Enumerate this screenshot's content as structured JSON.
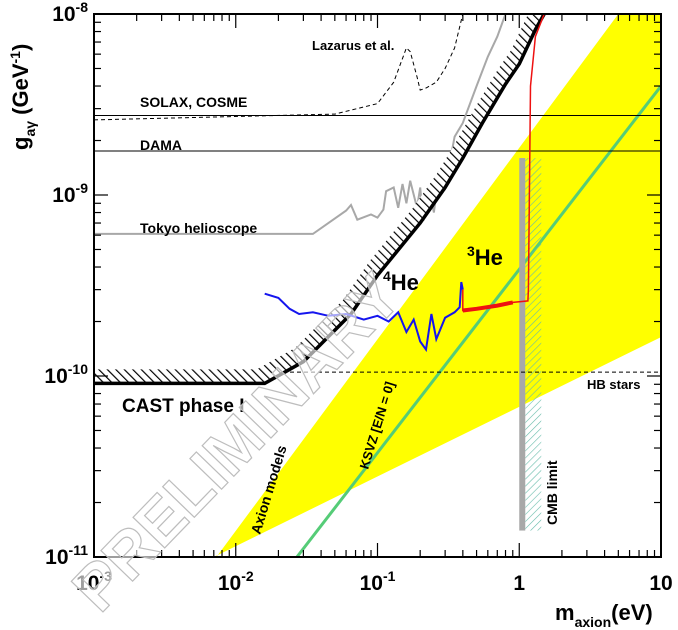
{
  "chart_data": {
    "type": "line",
    "xscale": "log",
    "yscale": "log",
    "xlim": [
      0.001,
      10
    ],
    "ylim": [
      1e-11,
      1e-08
    ],
    "xlabel": {
      "main": "m",
      "sub": "axion",
      "tail": "(eV)"
    },
    "ylabel": {
      "main": "g",
      "sub": "aγ",
      "tail": " (GeV",
      "sup": "-1",
      "close": ")"
    },
    "x_tick_labels": [
      {
        "value": 0.001,
        "base": "10",
        "exp": "-3"
      },
      {
        "value": 0.01,
        "base": "10",
        "exp": "-2"
      },
      {
        "value": 0.1,
        "base": "10",
        "exp": "-1"
      },
      {
        "value": 1,
        "base": "1",
        "exp": ""
      },
      {
        "value": 10,
        "base": "10",
        "exp": ""
      }
    ],
    "y_tick_labels": [
      {
        "value": 1e-08,
        "base": "10",
        "exp": "-8"
      },
      {
        "value": 1e-09,
        "base": "10",
        "exp": "-9"
      },
      {
        "value": 1e-10,
        "base": "10",
        "exp": "-10"
      },
      {
        "value": 1e-11,
        "base": "10",
        "exp": "-11"
      }
    ],
    "watermark": "PRELIMINARY",
    "colors": {
      "yellow_band": "#ffff00",
      "ksvz": "#55cc77",
      "he4": "#1515ee",
      "he3": "#ee1111",
      "gray": "#a8a8a8",
      "cmb_hatch": "#66bbaa"
    },
    "series": [
      {
        "name": "Axion models",
        "kind": "band",
        "lower": [
          [
            0.007,
            1e-11
          ],
          [
            10,
            1.64e-10
          ]
        ],
        "upper": [
          [
            0.0073,
            1e-11
          ],
          [
            5,
            1e-08
          ]
        ]
      },
      {
        "name": "KSVZ [E/N = 0]",
        "kind": "line",
        "points": [
          [
            0.027,
            1e-11
          ],
          [
            10,
            4e-09
          ]
        ]
      },
      {
        "name": "CAST phase I",
        "kind": "line",
        "points": [
          [
            0.001,
            9.1e-11
          ],
          [
            0.016,
            9.1e-11
          ],
          [
            0.03,
            1.2e-10
          ],
          [
            0.065,
            2.2e-10
          ],
          [
            0.1,
            3.6e-10
          ],
          [
            0.2,
            7e-10
          ],
          [
            0.3,
            1.1e-09
          ],
          [
            0.4,
            1.6e-09
          ],
          [
            0.55,
            2.5e-09
          ],
          [
            0.8,
            4.1e-09
          ],
          [
            1,
            5.3e-09
          ],
          [
            1.3,
            8.2e-09
          ],
          [
            1.5,
            1e-08
          ]
        ]
      },
      {
        "name": "Lazarus et al.",
        "kind": "line",
        "style": "dashed",
        "points": [
          [
            0.001,
            2.6e-09
          ],
          [
            0.05,
            2.8e-09
          ],
          [
            0.1,
            3.2e-09
          ],
          [
            0.13,
            4.2e-09
          ],
          [
            0.16,
            6.5e-09
          ],
          [
            0.17,
            6.2e-09
          ],
          [
            0.19,
            4.5e-09
          ],
          [
            0.2,
            3.8e-09
          ],
          [
            0.22,
            3.9e-09
          ],
          [
            0.26,
            4.2e-09
          ],
          [
            0.3,
            5e-09
          ],
          [
            0.35,
            6.5e-09
          ],
          [
            0.4,
            1e-08
          ]
        ]
      },
      {
        "name": "SOLAX, COSME",
        "kind": "hline",
        "value": 2.75e-09
      },
      {
        "name": "DAMA",
        "kind": "hline",
        "value": 1.75e-09
      },
      {
        "name": "Tokyo helioscope",
        "kind": "line",
        "points": [
          [
            0.001,
            6.1e-10
          ],
          [
            0.035,
            6.1e-10
          ],
          [
            0.06,
            8.2e-10
          ],
          [
            0.065,
            8.8e-10
          ],
          [
            0.072,
            7.3e-10
          ],
          [
            0.09,
            7.8e-10
          ],
          [
            0.1,
            7.5e-10
          ],
          [
            0.11,
            8.3e-10
          ],
          [
            0.115,
            1.05e-09
          ],
          [
            0.13,
            1.1e-09
          ],
          [
            0.14,
            8.5e-10
          ],
          [
            0.15,
            1.15e-09
          ],
          [
            0.16,
            9e-10
          ],
          [
            0.17,
            1.2e-09
          ],
          [
            0.19,
            8.5e-10
          ],
          [
            0.2,
            1.1e-09
          ],
          [
            0.21,
            7.2e-10
          ],
          [
            0.23,
            1.1e-09
          ],
          [
            0.25,
            8e-10
          ],
          [
            0.27,
            1.3e-09
          ],
          [
            0.3,
            1.1e-09
          ],
          [
            0.35,
            2.1e-09
          ],
          [
            0.4,
            2.5e-09
          ],
          [
            0.5,
            4e-09
          ],
          [
            0.6,
            5.8e-09
          ],
          [
            0.7,
            7.5e-09
          ],
          [
            0.8,
            1e-08
          ]
        ]
      },
      {
        "name": "4He",
        "kind": "line",
        "points": [
          [
            0.016,
            2.85e-10
          ],
          [
            0.02,
            2.7e-10
          ],
          [
            0.024,
            2.35e-10
          ],
          [
            0.028,
            2.2e-10
          ],
          [
            0.035,
            2.25e-10
          ],
          [
            0.045,
            2.15e-10
          ],
          [
            0.06,
            2.2e-10
          ],
          [
            0.08,
            2.05e-10
          ],
          [
            0.1,
            2.15e-10
          ],
          [
            0.12,
            2e-10
          ],
          [
            0.14,
            2.25e-10
          ],
          [
            0.16,
            1.75e-10
          ],
          [
            0.18,
            2.05e-10
          ],
          [
            0.2,
            1.55e-10
          ],
          [
            0.22,
            1.4e-10
          ],
          [
            0.24,
            2.2e-10
          ],
          [
            0.26,
            1.6e-10
          ],
          [
            0.3,
            2.1e-10
          ],
          [
            0.35,
            2.25e-10
          ],
          [
            0.38,
            2.4e-10
          ],
          [
            0.39,
            3.3e-10
          ],
          [
            0.4,
            3e-10
          ]
        ]
      },
      {
        "name": "3He",
        "kind": "line",
        "points": [
          [
            0.4,
            3e-10
          ],
          [
            0.4,
            2.3e-10
          ],
          [
            0.5,
            2.35e-10
          ],
          [
            0.7,
            2.45e-10
          ],
          [
            0.9,
            2.55e-10
          ],
          [
            1.15,
            2.6e-10
          ],
          [
            1.16,
            3e-10
          ],
          [
            1.2,
            4e-09
          ],
          [
            1.3,
            7.5e-09
          ],
          [
            1.5,
            1e-08
          ]
        ]
      },
      {
        "name": "HB stars",
        "kind": "hline",
        "style": "dashed",
        "value": 1.05e-10
      },
      {
        "name": "CMB limit",
        "kind": "vline",
        "value": 1.05
      }
    ],
    "labels": {
      "lazarus": "Lazarus et al.",
      "solax": "SOLAX, COSME",
      "dama": "DAMA",
      "tokyo": "Tokyo helioscope",
      "he4_mass": "4",
      "he4_elem": "He",
      "he3_mass": "3",
      "he3_elem": "He",
      "hb": "HB stars",
      "cast": "CAST phase I",
      "axion_models": "Axion models",
      "ksvz": "KSVZ [E/N = 0]",
      "cmb": "CMB limit"
    }
  }
}
